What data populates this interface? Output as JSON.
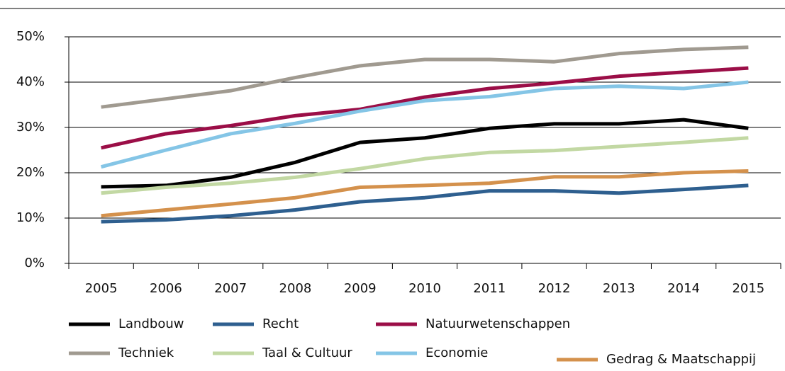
{
  "chart_data": {
    "type": "line",
    "categories": [
      "2005",
      "2006",
      "2007",
      "2008",
      "2009",
      "2010",
      "2011",
      "2012",
      "2013",
      "2014",
      "2015"
    ],
    "series": [
      {
        "name": "Landbouw",
        "color": "#000000",
        "values": [
          16.9,
          17.2,
          19,
          22.3,
          26.7,
          27.7,
          29.8,
          30.8,
          30.8,
          31.7,
          29.8
        ]
      },
      {
        "name": "Recht",
        "color": "#2e5f8f",
        "values": [
          9.2,
          9.6,
          10.5,
          11.8,
          13.6,
          14.5,
          16,
          16,
          15.5,
          16.3,
          17.2
        ]
      },
      {
        "name": "Natuurwetenschappen",
        "color": "#9b0e47",
        "values": [
          25.5,
          28.6,
          30.4,
          32.6,
          34,
          36.7,
          38.6,
          39.8,
          41.3,
          42.2,
          43.1
        ]
      },
      {
        "name": "Techniek",
        "color": "#a09a90",
        "values": [
          34.5,
          36.3,
          38.1,
          41,
          43.6,
          45,
          45,
          44.5,
          46.3,
          47.2,
          47.7
        ]
      },
      {
        "name": "Taal & Cultuur",
        "color": "#c2d8a3",
        "values": [
          15.5,
          16.8,
          17.7,
          19,
          20.9,
          23.1,
          24.5,
          24.9,
          25.8,
          26.7,
          27.7
        ]
      },
      {
        "name": "Economie",
        "color": "#84c5e6",
        "values": [
          21.3,
          25,
          28.6,
          30.9,
          33.6,
          35.9,
          36.8,
          38.6,
          39.1,
          38.6,
          40
        ]
      },
      {
        "name": "Gedrag & Maatschappij",
        "color": "#d4914c",
        "values": [
          10.5,
          11.8,
          13.1,
          14.5,
          16.8,
          17.2,
          17.7,
          19.1,
          19.1,
          20,
          20.4
        ]
      }
    ],
    "ylim": [
      0,
      50
    ],
    "yticks": [
      {
        "value": 0,
        "label": "0%"
      },
      {
        "value": 10,
        "label": "10%"
      },
      {
        "value": 20,
        "label": "20%"
      },
      {
        "value": 30,
        "label": "30%"
      },
      {
        "value": 40,
        "label": "40%"
      },
      {
        "value": 50,
        "label": "50%"
      }
    ],
    "grid": true
  }
}
